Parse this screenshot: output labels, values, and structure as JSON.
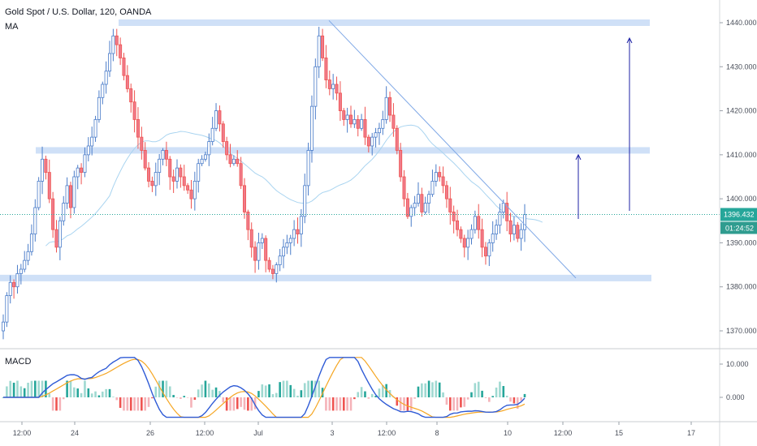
{
  "header": {
    "symbol_line": "Gold Spot / U.S. Dollar, 120, OANDA",
    "indicator_main": "MA",
    "indicator_sub": "MACD"
  },
  "price_axis": {
    "ticks": [
      "1440.000",
      "1430.000",
      "1420.000",
      "1410.000",
      "1400.000",
      "1390.000",
      "1380.000",
      "1370.000"
    ],
    "current_price": "1396.432",
    "countdown": "01:24:52"
  },
  "macd_axis": {
    "ticks": [
      "10.000",
      "0.000"
    ]
  },
  "time_axis": {
    "ticks": [
      "12:00",
      "24",
      "26",
      "12:00",
      "Jul",
      "3",
      "12:00",
      "8",
      "10",
      "12:00",
      "15",
      "17"
    ]
  },
  "colors": {
    "up": "#26a69a",
    "up_body": "#4a7cc9",
    "down": "#ef5350",
    "ma": "#a9d4f0",
    "zone": "#cfe0f7",
    "arrow": "#1e22a6",
    "macd_line": "#2f5bd6",
    "signal_line": "#f5a623",
    "trendline": "#7fa8e6"
  },
  "chart_data": {
    "type": "candlestick",
    "symbol": "Gold Spot / U.S. Dollar, 120, OANDA",
    "ylim": [
      1365,
      1445
    ],
    "close": [
      1372,
      1378,
      1381,
      1380,
      1383,
      1384,
      1386,
      1388,
      1392,
      1398,
      1404,
      1409,
      1406,
      1400,
      1393,
      1389,
      1395,
      1399,
      1403,
      1398,
      1405,
      1407,
      1406,
      1410,
      1412,
      1414,
      1418,
      1423,
      1426,
      1429,
      1433,
      1437,
      1435,
      1432,
      1428,
      1425,
      1422,
      1418,
      1414,
      1411,
      1407,
      1404,
      1403,
      1406,
      1409,
      1411,
      1409,
      1405,
      1404,
      1407,
      1405,
      1403,
      1402,
      1400,
      1404,
      1408,
      1409,
      1410,
      1413,
      1416,
      1420,
      1417,
      1413,
      1410,
      1408,
      1409,
      1408,
      1403,
      1397,
      1393,
      1389,
      1386,
      1390,
      1391,
      1386,
      1384,
      1383,
      1385,
      1387,
      1389,
      1390,
      1391,
      1393,
      1392,
      1396,
      1403,
      1411,
      1421,
      1430,
      1437,
      1432,
      1427,
      1425,
      1426,
      1424,
      1420,
      1418,
      1419,
      1417,
      1418,
      1416,
      1418,
      1414,
      1412,
      1414,
      1415,
      1416,
      1418,
      1423,
      1419,
      1416,
      1411,
      1405,
      1400,
      1396,
      1398,
      1399,
      1401,
      1397,
      1399,
      1401,
      1404,
      1406,
      1405,
      1403,
      1400,
      1397,
      1395,
      1393,
      1391,
      1389,
      1391,
      1393,
      1396,
      1393,
      1389,
      1387,
      1390,
      1392,
      1394,
      1397,
      1399,
      1395,
      1392,
      1394,
      1391,
      1393,
      1396.4
    ],
    "ma_line": "moving average shown as light blue curve",
    "zones": [
      1440,
      1411,
      1382
    ],
    "macd": {
      "zero": 0,
      "ylim": [
        -6,
        12
      ]
    }
  }
}
